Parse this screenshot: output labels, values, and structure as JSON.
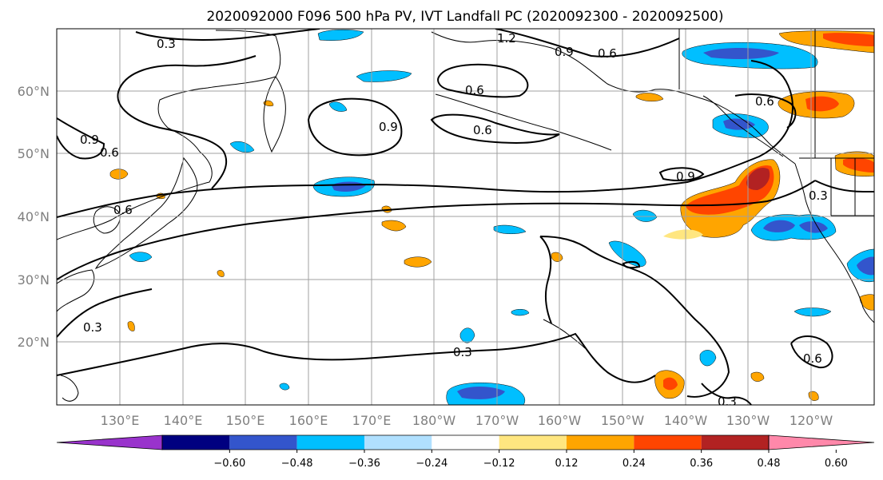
{
  "title": "2020092000 F096 500 hPa PV, IVT Landfall PC (2020092300 - 2020092500)",
  "lat_labels": [
    "60°N",
    "50°N",
    "40°N",
    "30°N",
    "20°N"
  ],
  "lon_labels": [
    "130°E",
    "140°E",
    "150°E",
    "160°E",
    "170°E",
    "180°W",
    "170°W",
    "160°W",
    "150°W",
    "140°W",
    "130°W",
    "120°W"
  ],
  "colorbar": {
    "colors": [
      "#9933cc",
      "#000080",
      "#3355cc",
      "#00bfff",
      "#b0e0ff",
      "#ffffff",
      "#ffe680",
      "#ffa500",
      "#ff4500",
      "#b22222",
      "#ff88aa"
    ],
    "tick_labels": [
      "−0.60",
      "−0.48",
      "−0.36",
      "−0.24",
      "−0.12",
      "0.12",
      "0.24",
      "0.36",
      "0.48",
      "0.60"
    ]
  },
  "contour_labels": [
    "0.3",
    "1.2",
    "0.9",
    "0.6",
    "0.6",
    "0.9",
    "0.6",
    "0.6",
    "0.9",
    "0.3",
    "0.6",
    "0.9",
    "0.6",
    "0.3",
    "0.3",
    "0.6",
    "0.3"
  ],
  "map": {
    "projection": "cylindrical",
    "lon_range": [
      "120°E",
      "110°W"
    ],
    "lat_range": [
      "10°N",
      "70°N"
    ],
    "grid": "on",
    "contour_color": "#000000",
    "colorbar_position": "bottom"
  }
}
